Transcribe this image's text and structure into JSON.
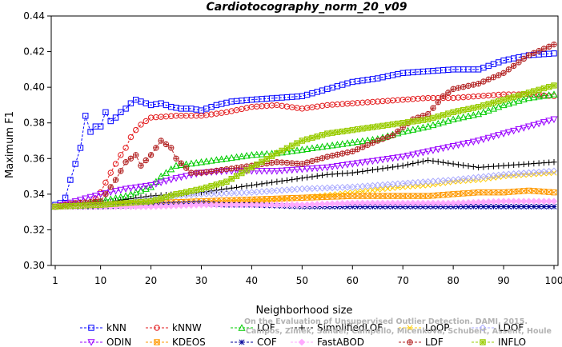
{
  "chart_data": {
    "type": "line",
    "title": "Cardiotocography_norm_20_v09",
    "xlabel": "Neighborhood size",
    "ylabel": "Maximum F1",
    "xlim": [
      1,
      100
    ],
    "ylim": [
      0.3,
      0.44
    ],
    "xticks": [
      1,
      10,
      20,
      30,
      40,
      50,
      60,
      70,
      80,
      90,
      100
    ],
    "xtick_labels": [
      "1",
      "10",
      "20",
      "30",
      "40",
      "50",
      "60",
      "70",
      "80",
      "90",
      "100"
    ],
    "yticks": [
      0.3,
      0.32,
      0.34,
      0.36,
      0.38,
      0.4,
      0.42,
      0.44
    ],
    "ytick_labels": [
      "0.30",
      "0.32",
      "0.34",
      "0.36",
      "0.38",
      "0.40",
      "0.42",
      "0.44"
    ],
    "grid": false,
    "legend_position": "bottom",
    "watermark": [
      "Campos, Zimek, Sander, Campello, Micenkova, Schubert, Assent, Houle",
      "On the Evaluation of Unsupervised Outlier Detection. DAMI, 2015."
    ],
    "series": [
      {
        "name": "kNN",
        "color": "#0000ff",
        "marker": "square",
        "points": [
          [
            1,
            0.334
          ],
          [
            2,
            0.335
          ],
          [
            3,
            0.338
          ],
          [
            4,
            0.348
          ],
          [
            5,
            0.357
          ],
          [
            6,
            0.366
          ],
          [
            7,
            0.384
          ],
          [
            8,
            0.375
          ],
          [
            9,
            0.378
          ],
          [
            10,
            0.378
          ],
          [
            11,
            0.386
          ],
          [
            12,
            0.381
          ],
          [
            13,
            0.383
          ],
          [
            14,
            0.386
          ],
          [
            15,
            0.388
          ],
          [
            16,
            0.391
          ],
          [
            17,
            0.393
          ],
          [
            18,
            0.392
          ],
          [
            20,
            0.39
          ],
          [
            22,
            0.391
          ],
          [
            24,
            0.389
          ],
          [
            26,
            0.388
          ],
          [
            28,
            0.388
          ],
          [
            30,
            0.387
          ],
          [
            33,
            0.39
          ],
          [
            36,
            0.392
          ],
          [
            40,
            0.393
          ],
          [
            45,
            0.394
          ],
          [
            50,
            0.395
          ],
          [
            55,
            0.399
          ],
          [
            60,
            0.403
          ],
          [
            65,
            0.405
          ],
          [
            70,
            0.408
          ],
          [
            75,
            0.409
          ],
          [
            80,
            0.41
          ],
          [
            85,
            0.41
          ],
          [
            90,
            0.415
          ],
          [
            95,
            0.418
          ],
          [
            100,
            0.419
          ]
        ]
      },
      {
        "name": "kNNW",
        "color": "#e31a1c",
        "marker": "circle",
        "points": [
          [
            1,
            0.333
          ],
          [
            5,
            0.334
          ],
          [
            8,
            0.334
          ],
          [
            10,
            0.341
          ],
          [
            12,
            0.352
          ],
          [
            14,
            0.362
          ],
          [
            15,
            0.366
          ],
          [
            16,
            0.372
          ],
          [
            17,
            0.376
          ],
          [
            18,
            0.379
          ],
          [
            20,
            0.383
          ],
          [
            25,
            0.384
          ],
          [
            30,
            0.384
          ],
          [
            35,
            0.386
          ],
          [
            40,
            0.389
          ],
          [
            45,
            0.39
          ],
          [
            50,
            0.388
          ],
          [
            55,
            0.39
          ],
          [
            60,
            0.391
          ],
          [
            65,
            0.392
          ],
          [
            70,
            0.393
          ],
          [
            75,
            0.394
          ],
          [
            80,
            0.394
          ],
          [
            85,
            0.395
          ],
          [
            90,
            0.396
          ],
          [
            95,
            0.396
          ],
          [
            100,
            0.395
          ]
        ]
      },
      {
        "name": "LOF",
        "color": "#00cc00",
        "marker": "triangle-up",
        "points": [
          [
            1,
            0.333
          ],
          [
            5,
            0.334
          ],
          [
            10,
            0.336
          ],
          [
            15,
            0.339
          ],
          [
            20,
            0.344
          ],
          [
            22,
            0.35
          ],
          [
            25,
            0.356
          ],
          [
            30,
            0.358
          ],
          [
            35,
            0.36
          ],
          [
            40,
            0.362
          ],
          [
            45,
            0.363
          ],
          [
            50,
            0.365
          ],
          [
            55,
            0.367
          ],
          [
            60,
            0.369
          ],
          [
            65,
            0.371
          ],
          [
            70,
            0.375
          ],
          [
            75,
            0.378
          ],
          [
            80,
            0.382
          ],
          [
            85,
            0.385
          ],
          [
            90,
            0.39
          ],
          [
            95,
            0.394
          ],
          [
            100,
            0.396
          ]
        ]
      },
      {
        "name": "SimplifiedLOF",
        "color": "#000000",
        "marker": "plus",
        "points": [
          [
            1,
            0.333
          ],
          [
            5,
            0.334
          ],
          [
            10,
            0.335
          ],
          [
            15,
            0.337
          ],
          [
            20,
            0.339
          ],
          [
            25,
            0.34
          ],
          [
            30,
            0.341
          ],
          [
            35,
            0.343
          ],
          [
            40,
            0.345
          ],
          [
            45,
            0.347
          ],
          [
            50,
            0.349
          ],
          [
            55,
            0.351
          ],
          [
            60,
            0.352
          ],
          [
            65,
            0.354
          ],
          [
            70,
            0.356
          ],
          [
            75,
            0.359
          ],
          [
            80,
            0.357
          ],
          [
            85,
            0.355
          ],
          [
            90,
            0.356
          ],
          [
            95,
            0.357
          ],
          [
            100,
            0.358
          ]
        ]
      },
      {
        "name": "LoOP",
        "color": "#ffcc00",
        "marker": "cross",
        "points": [
          [
            1,
            0.333
          ],
          [
            10,
            0.333
          ],
          [
            20,
            0.334
          ],
          [
            30,
            0.335
          ],
          [
            40,
            0.336
          ],
          [
            50,
            0.338
          ],
          [
            60,
            0.341
          ],
          [
            70,
            0.344
          ],
          [
            75,
            0.345
          ],
          [
            80,
            0.347
          ],
          [
            85,
            0.348
          ],
          [
            90,
            0.35
          ],
          [
            95,
            0.351
          ],
          [
            100,
            0.352
          ]
        ]
      },
      {
        "name": "LDOF",
        "color": "#aaaaff",
        "marker": "diamond",
        "points": [
          [
            1,
            0.333
          ],
          [
            5,
            0.334
          ],
          [
            10,
            0.334
          ],
          [
            15,
            0.335
          ],
          [
            20,
            0.337
          ],
          [
            25,
            0.339
          ],
          [
            30,
            0.34
          ],
          [
            40,
            0.341
          ],
          [
            50,
            0.343
          ],
          [
            60,
            0.344
          ],
          [
            70,
            0.346
          ],
          [
            80,
            0.348
          ],
          [
            90,
            0.351
          ],
          [
            100,
            0.353
          ]
        ]
      },
      {
        "name": "ODIN",
        "color": "#9900ff",
        "marker": "triangle-down",
        "points": [
          [
            1,
            0.333
          ],
          [
            5,
            0.336
          ],
          [
            10,
            0.34
          ],
          [
            15,
            0.343
          ],
          [
            20,
            0.345
          ],
          [
            25,
            0.349
          ],
          [
            30,
            0.352
          ],
          [
            35,
            0.353
          ],
          [
            40,
            0.353
          ],
          [
            45,
            0.353
          ],
          [
            50,
            0.354
          ],
          [
            55,
            0.355
          ],
          [
            60,
            0.357
          ],
          [
            65,
            0.359
          ],
          [
            70,
            0.361
          ],
          [
            75,
            0.364
          ],
          [
            80,
            0.367
          ],
          [
            85,
            0.37
          ],
          [
            90,
            0.374
          ],
          [
            95,
            0.378
          ],
          [
            100,
            0.382
          ]
        ]
      },
      {
        "name": "KDEOS",
        "color": "#ff9900",
        "marker": "square-x",
        "points": [
          [
            1,
            0.333
          ],
          [
            10,
            0.334
          ],
          [
            20,
            0.335
          ],
          [
            30,
            0.336
          ],
          [
            40,
            0.337
          ],
          [
            50,
            0.338
          ],
          [
            60,
            0.339
          ],
          [
            70,
            0.339
          ],
          [
            75,
            0.339
          ],
          [
            80,
            0.34
          ],
          [
            85,
            0.341
          ],
          [
            90,
            0.341
          ],
          [
            95,
            0.342
          ],
          [
            100,
            0.341
          ]
        ]
      },
      {
        "name": "COF",
        "color": "#000099",
        "marker": "asterisk",
        "points": [
          [
            1,
            0.333
          ],
          [
            10,
            0.333
          ],
          [
            20,
            0.334
          ],
          [
            30,
            0.335
          ],
          [
            35,
            0.334
          ],
          [
            40,
            0.334
          ],
          [
            50,
            0.333
          ],
          [
            60,
            0.333
          ],
          [
            70,
            0.333
          ],
          [
            80,
            0.333
          ],
          [
            90,
            0.333
          ],
          [
            100,
            0.333
          ]
        ]
      },
      {
        "name": "FastABOD",
        "color": "#ffaaff",
        "marker": "diamond-filled",
        "points": [
          [
            1,
            0.333
          ],
          [
            10,
            0.333
          ],
          [
            20,
            0.333
          ],
          [
            30,
            0.334
          ],
          [
            40,
            0.334
          ],
          [
            50,
            0.334
          ],
          [
            60,
            0.335
          ],
          [
            70,
            0.335
          ],
          [
            80,
            0.335
          ],
          [
            90,
            0.336
          ],
          [
            100,
            0.336
          ]
        ]
      },
      {
        "name": "LDF",
        "color": "#b22222",
        "marker": "circle-plus",
        "points": [
          [
            1,
            0.333
          ],
          [
            5,
            0.335
          ],
          [
            10,
            0.336
          ],
          [
            13,
            0.348
          ],
          [
            15,
            0.358
          ],
          [
            17,
            0.362
          ],
          [
            18,
            0.356
          ],
          [
            20,
            0.362
          ],
          [
            22,
            0.37
          ],
          [
            24,
            0.366
          ],
          [
            25,
            0.36
          ],
          [
            28,
            0.352
          ],
          [
            30,
            0.352
          ],
          [
            35,
            0.354
          ],
          [
            40,
            0.356
          ],
          [
            45,
            0.358
          ],
          [
            50,
            0.357
          ],
          [
            55,
            0.361
          ],
          [
            60,
            0.364
          ],
          [
            65,
            0.37
          ],
          [
            68,
            0.373
          ],
          [
            72,
            0.382
          ],
          [
            75,
            0.385
          ],
          [
            78,
            0.395
          ],
          [
            80,
            0.399
          ],
          [
            85,
            0.402
          ],
          [
            90,
            0.408
          ],
          [
            95,
            0.418
          ],
          [
            100,
            0.424
          ]
        ]
      },
      {
        "name": "INFLO",
        "color": "#99cc00",
        "marker": "star-box",
        "points": [
          [
            1,
            0.333
          ],
          [
            10,
            0.334
          ],
          [
            20,
            0.336
          ],
          [
            25,
            0.34
          ],
          [
            30,
            0.343
          ],
          [
            35,
            0.347
          ],
          [
            40,
            0.355
          ],
          [
            45,
            0.363
          ],
          [
            50,
            0.37
          ],
          [
            55,
            0.374
          ],
          [
            60,
            0.376
          ],
          [
            65,
            0.378
          ],
          [
            70,
            0.38
          ],
          [
            75,
            0.382
          ],
          [
            80,
            0.386
          ],
          [
            85,
            0.389
          ],
          [
            90,
            0.393
          ],
          [
            95,
            0.397
          ],
          [
            100,
            0.401
          ]
        ]
      }
    ]
  }
}
